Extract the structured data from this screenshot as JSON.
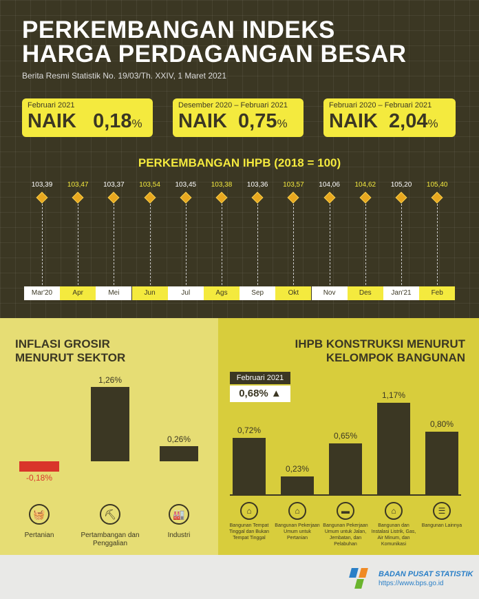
{
  "header": {
    "title_line1": "PERKEMBANGAN INDEKS",
    "title_line2": "HARGA PERDAGANGAN BESAR",
    "subtitle": "Berita Resmi Statistik No. 19/03/Th. XXIV, 1 Maret 2021"
  },
  "cards": [
    {
      "period": "Februari 2021",
      "label": "NAIK",
      "value": "0,18",
      "unit": "%"
    },
    {
      "period": "Desember 2020 – Februari 2021",
      "label": "NAIK",
      "value": "0,75",
      "unit": "%"
    },
    {
      "period": "Februari 2020 – Februari 2021",
      "label": "NAIK",
      "value": "2,04",
      "unit": "%"
    }
  ],
  "colors": {
    "dark": "#3b3723",
    "yellow": "#f4ea3e",
    "red": "#d9352a"
  },
  "chart_data": [
    {
      "type": "line",
      "title": "PERKEMBANGAN IHPB (2018 = 100)",
      "categories": [
        "Mar'20",
        "Apr",
        "Mei",
        "Jun",
        "Jul",
        "Ags",
        "Sep",
        "Okt",
        "Nov",
        "Des",
        "Jan'21",
        "Feb"
      ],
      "values": [
        103.39,
        103.47,
        103.37,
        103.54,
        103.45,
        103.38,
        103.36,
        103.57,
        104.06,
        104.62,
        105.2,
        105.4
      ],
      "labels": [
        "103,39",
        "103,47",
        "103,37",
        "103,54",
        "103,45",
        "103,38",
        "103,36",
        "103,57",
        "104,06",
        "104,62",
        "105,20",
        "105,40"
      ]
    },
    {
      "type": "bar",
      "title_line1": "INFLASI GROSIR",
      "title_line2": "MENURUT SEKTOR",
      "categories": [
        "Pertanian",
        "Pertambangan dan Penggalian",
        "Industri"
      ],
      "values": [
        -0.18,
        1.26,
        0.26
      ],
      "labels": [
        "-0,18%",
        "1,26%",
        "0,26%"
      ]
    },
    {
      "type": "bar",
      "title_line1": "IHPB KONSTRUKSI MENURUT",
      "title_line2": "KELOMPOK BANGUNAN",
      "badge_period": "Februari 2021",
      "badge_value": "0,68%",
      "categories": [
        "Bangunan Tempat Tinggal dan Bukan Tempat Tinggal",
        "Bangunan Pekerjaan Umum untuk Pertanian",
        "Bangunan Pekerjaan Umum untuk Jalan, Jembatan, dan Pelabuhan",
        "Bangunan dan Instalasi Listrik, Gas, Air Minum, dan Komunikasi",
        "Bangunan Lainnya"
      ],
      "values": [
        0.72,
        0.23,
        0.65,
        1.17,
        0.8
      ],
      "labels": [
        "0,72%",
        "0,23%",
        "0,65%",
        "1,17%",
        "0,80%"
      ]
    }
  ],
  "footer": {
    "org": "BADAN PUSAT STATISTIK",
    "url": "https://www.bps.go.id"
  }
}
